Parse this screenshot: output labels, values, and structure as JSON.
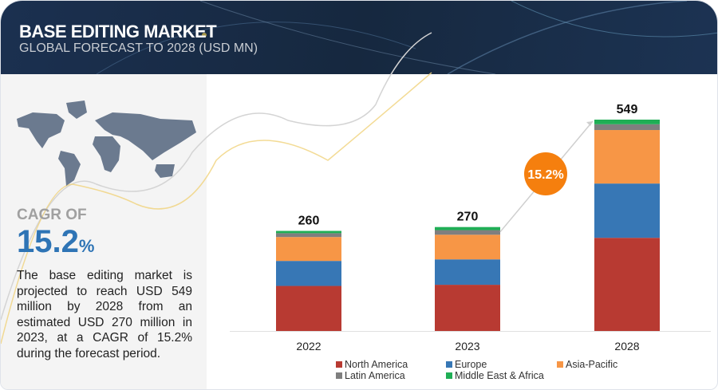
{
  "header": {
    "title": "BASE EDITING MARKET",
    "subtitle": "GLOBAL FORECAST TO 2028 (USD MN)"
  },
  "left": {
    "cagr_label": "CAGR OF",
    "cagr_value": "15.2",
    "cagr_unit": "%",
    "description": "The base editing market is projected to reach USD 549 million by 2028 from an estimated USD 270 million in 2023, at a CAGR of 15.2% during the forecast period."
  },
  "chart_data": {
    "type": "bar",
    "stacked": true,
    "categories": [
      "2022",
      "2023",
      "2028"
    ],
    "totals": [
      "260",
      "270",
      "549"
    ],
    "series": [
      {
        "name": "North America",
        "color": "#b83a32",
        "values": [
          117,
          120,
          242
        ]
      },
      {
        "name": "Europe",
        "color": "#3777b5",
        "values": [
          65,
          66,
          141
        ]
      },
      {
        "name": "Asia-Pacific",
        "color": "#f79646",
        "values": [
          62,
          64,
          139
        ]
      },
      {
        "name": "Latin America",
        "color": "#7f7f7f",
        "values": [
          10,
          12,
          15
        ]
      },
      {
        "name": "Middle East & Africa",
        "color": "#1fae55",
        "values": [
          6,
          8,
          12
        ]
      }
    ],
    "annotation": "15.2%",
    "annotation_color": "#f57f0e",
    "grid": false,
    "legend": "bottom"
  }
}
